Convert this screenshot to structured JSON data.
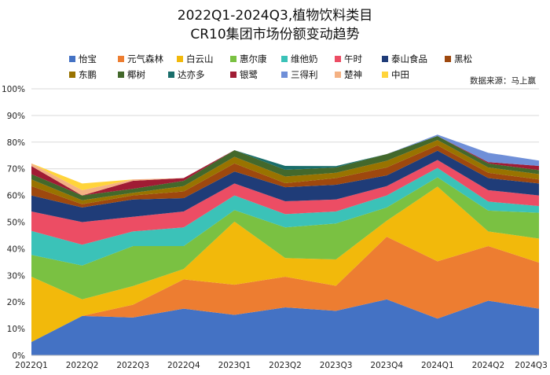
{
  "header": {
    "title_line1": "2022Q1-2024Q3,植物饮料类目",
    "title_line2": "CR10集团市场份额变动趋势"
  },
  "source": "数据来源：马上赢",
  "chart_data": {
    "type": "area",
    "stacked": true,
    "title": "2022Q1-2024Q3,植物饮料类目 CR10集团市场份额变动趋势",
    "xlabel": "",
    "ylabel": "",
    "ylim": [
      0,
      100
    ],
    "yticks": [
      "0%",
      "10%",
      "20%",
      "30%",
      "40%",
      "50%",
      "60%",
      "70%",
      "80%",
      "90%",
      "100%"
    ],
    "grid": true,
    "legend_position": "top",
    "categories": [
      "2022Q1",
      "2022Q2",
      "2022Q3",
      "2022Q4",
      "2023Q1",
      "2023Q2",
      "2023Q3",
      "2023Q4",
      "2024Q1",
      "2024Q2",
      "2024Q3"
    ],
    "series": [
      {
        "name": "怡宝",
        "color": "#4472C4",
        "values": [
          5.0,
          14.8,
          14.2,
          17.5,
          15.2,
          18.0,
          16.7,
          21.0,
          13.8,
          20.5,
          17.5
        ]
      },
      {
        "name": "元气森林",
        "color": "#ED7D31",
        "values": [
          0,
          0,
          4.8,
          11.0,
          11.3,
          11.5,
          9.4,
          23.5,
          21.5,
          20.5,
          17.3
        ]
      },
      {
        "name": "白云山",
        "color": "#F2B90B",
        "values": [
          24.5,
          6.2,
          7.0,
          3.9,
          23.7,
          7.0,
          9.9,
          6.0,
          28.0,
          5.5,
          9.0
        ]
      },
      {
        "name": "惠尔康",
        "color": "#7AC142",
        "values": [
          8.2,
          12.7,
          15.0,
          8.6,
          4.3,
          11.5,
          13.5,
          5.0,
          3.5,
          7.8,
          9.7
        ]
      },
      {
        "name": "维他奶",
        "color": "#3BC2B8",
        "values": [
          9.0,
          7.8,
          5.5,
          7.0,
          5.5,
          5.0,
          4.5,
          4.5,
          3.5,
          3.4,
          2.5
        ]
      },
      {
        "name": "午时",
        "color": "#EC4D64",
        "values": [
          7.3,
          8.5,
          5.5,
          6.0,
          4.5,
          4.8,
          4.5,
          3.5,
          3.0,
          4.3,
          4.0
        ]
      },
      {
        "name": "泰山食品",
        "color": "#1F3C78",
        "values": [
          6.0,
          5.5,
          6.5,
          5.0,
          4.5,
          5.3,
          5.5,
          4.0,
          3.5,
          4.5,
          4.5
        ]
      },
      {
        "name": "黑松",
        "color": "#9E480E",
        "values": [
          3.5,
          1.2,
          1.5,
          2.5,
          3.0,
          1.5,
          2.5,
          3.0,
          2.0,
          2.0,
          1.5
        ]
      },
      {
        "name": "东鹏",
        "color": "#997300",
        "values": [
          2.5,
          1.5,
          1.0,
          2.0,
          2.5,
          2.5,
          2.0,
          2.5,
          2.0,
          2.0,
          2.0
        ]
      },
      {
        "name": "椰树",
        "color": "#43682B",
        "values": [
          2.0,
          1.8,
          1.5,
          2.0,
          2.5,
          2.5,
          2.0,
          2.5,
          1.5,
          1.5,
          1.5
        ]
      },
      {
        "name": "达亦多",
        "color": "#1A6E6B",
        "values": [
          0,
          0,
          0,
          0,
          0,
          1.5,
          0.5,
          0,
          0,
          0,
          0
        ]
      },
      {
        "name": "银鹭",
        "color": "#A01C34",
        "values": [
          3.0,
          0,
          3.0,
          1.0,
          0,
          0,
          0,
          0,
          0,
          0.5,
          1.6
        ]
      },
      {
        "name": "三得利",
        "color": "#6F8FD8",
        "values": [
          0,
          0,
          0,
          0,
          0,
          0,
          0,
          0,
          0.5,
          3.5,
          2.0
        ]
      },
      {
        "name": "楚神",
        "color": "#F4B183",
        "values": [
          1.0,
          2.0,
          0.5,
          0,
          0,
          0,
          0,
          0,
          0,
          0,
          0
        ]
      },
      {
        "name": "中田",
        "color": "#FFD43B",
        "values": [
          0,
          2.5,
          0,
          0,
          0,
          0,
          0,
          0,
          0,
          0,
          0
        ]
      }
    ]
  }
}
